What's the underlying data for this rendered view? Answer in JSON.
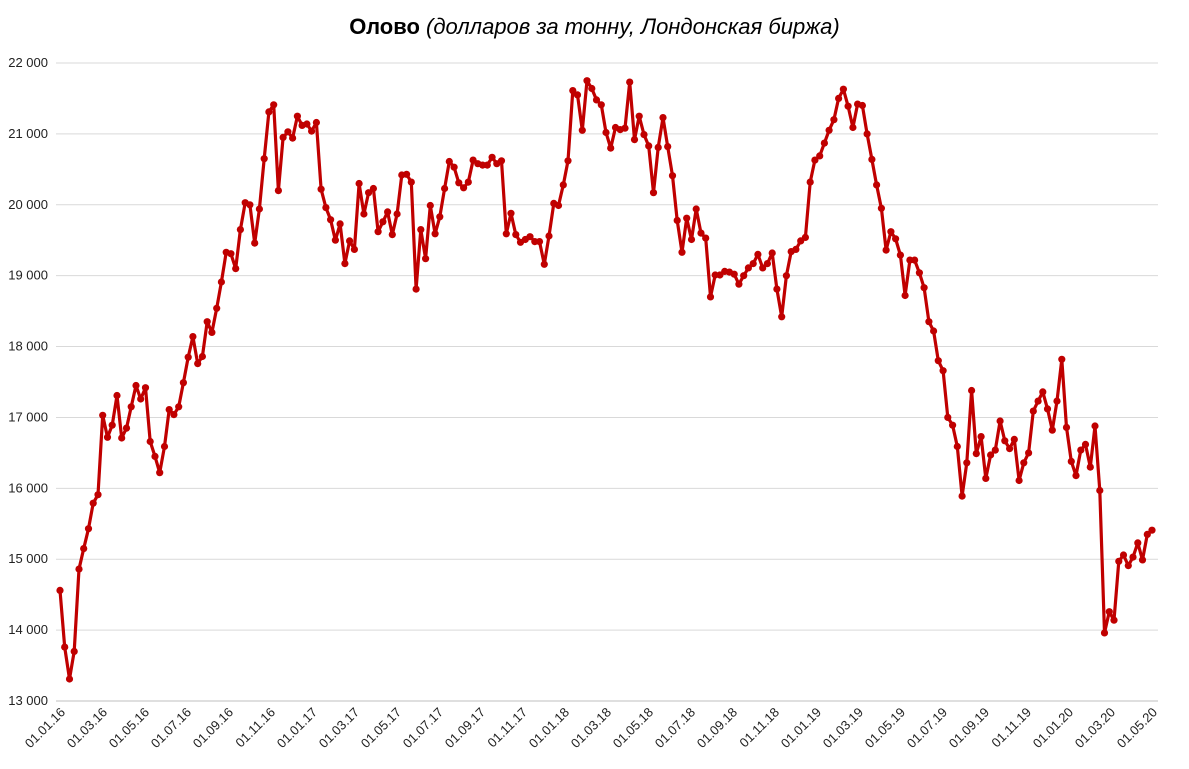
{
  "chart_data": {
    "type": "line",
    "title": "Олово",
    "subtitle": "(долларов за тонну, Лондонская биржа)",
    "xlabel": "",
    "ylabel": "",
    "ylim": [
      13000,
      22000
    ],
    "yticks": [
      13000,
      14000,
      15000,
      16000,
      17000,
      18000,
      19000,
      20000,
      21000,
      22000
    ],
    "ytick_labels": [
      "13 000",
      "14 000",
      "15 000",
      "16 000",
      "17 000",
      "18 000",
      "19 000",
      "20 000",
      "21 000",
      "22 000"
    ],
    "xtick_labels": [
      "01.01.16",
      "01.03.16",
      "01.05.16",
      "01.07.16",
      "01.09.16",
      "01.11.16",
      "01.01.17",
      "01.03.17",
      "01.05.17",
      "01.07.17",
      "01.09.17",
      "01.11.17",
      "01.01.18",
      "01.03.18",
      "01.05.18",
      "01.07.18",
      "01.09.18",
      "01.11.18",
      "01.01.19",
      "01.03.19",
      "01.05.19",
      "01.07.19",
      "01.09.19",
      "01.11.19",
      "01.01.20",
      "01.03.20",
      "01.05.20"
    ],
    "grid": true,
    "legend": "none",
    "series": [
      {
        "color": "#C00000",
        "values": [
          14560,
          13760,
          13310,
          13700,
          14860,
          15150,
          15430,
          15790,
          15910,
          17030,
          16720,
          16890,
          17310,
          16710,
          16850,
          17150,
          17450,
          17260,
          17420,
          16660,
          16450,
          16220,
          16590,
          17110,
          17040,
          17150,
          17490,
          17850,
          18140,
          17760,
          17860,
          18350,
          18200,
          18540,
          18910,
          19330,
          19310,
          19100,
          19650,
          20030,
          20000,
          19460,
          19940,
          20650,
          21310,
          21410,
          20200,
          20950,
          21030,
          20940,
          21250,
          21120,
          21140,
          21040,
          21160,
          20220,
          19960,
          19790,
          19500,
          19730,
          19170,
          19490,
          19370,
          20300,
          19870,
          20170,
          20230,
          19620,
          19760,
          19900,
          19580,
          19870,
          20420,
          20430,
          20320,
          18810,
          19650,
          19240,
          19990,
          19590,
          19830,
          20230,
          20610,
          20530,
          20310,
          20240,
          20320,
          20630,
          20580,
          20560,
          20560,
          20670,
          20580,
          20620,
          19590,
          19880,
          19580,
          19470,
          19510,
          19550,
          19480,
          19480,
          19160,
          19560,
          20020,
          19990,
          20280,
          20620,
          21610,
          21550,
          21050,
          21750,
          21640,
          21480,
          21410,
          21020,
          20800,
          21090,
          21060,
          21080,
          21730,
          20920,
          21250,
          20990,
          20830,
          20170,
          20810,
          21230,
          20820,
          20410,
          19780,
          19330,
          19810,
          19510,
          19940,
          19600,
          19530,
          18700,
          19010,
          19010,
          19060,
          19050,
          19020,
          18880,
          19000,
          19110,
          19170,
          19300,
          19110,
          19170,
          19320,
          18810,
          18420,
          19000,
          19340,
          19370,
          19490,
          19540,
          20320,
          20630,
          20690,
          20870,
          21050,
          21200,
          21500,
          21630,
          21390,
          21090,
          21420,
          21400,
          21000,
          20640,
          20280,
          19950,
          19360,
          19620,
          19520,
          19290,
          18720,
          19220,
          19220,
          19040,
          18830,
          18350,
          18220,
          17800,
          17660,
          17000,
          16890,
          16590,
          15890,
          16360,
          17380,
          16490,
          16730,
          16140,
          16470,
          16540,
          16950,
          16670,
          16560,
          16690,
          16110,
          16360,
          16500,
          17090,
          17230,
          17360,
          17120,
          16820,
          17230,
          17820,
          16860,
          16380,
          16180,
          16540,
          16620,
          16300,
          16880,
          15970,
          13960,
          14260,
          14140,
          14970,
          15060,
          14910,
          15030,
          15230,
          14990,
          15350,
          15410
        ]
      }
    ]
  }
}
